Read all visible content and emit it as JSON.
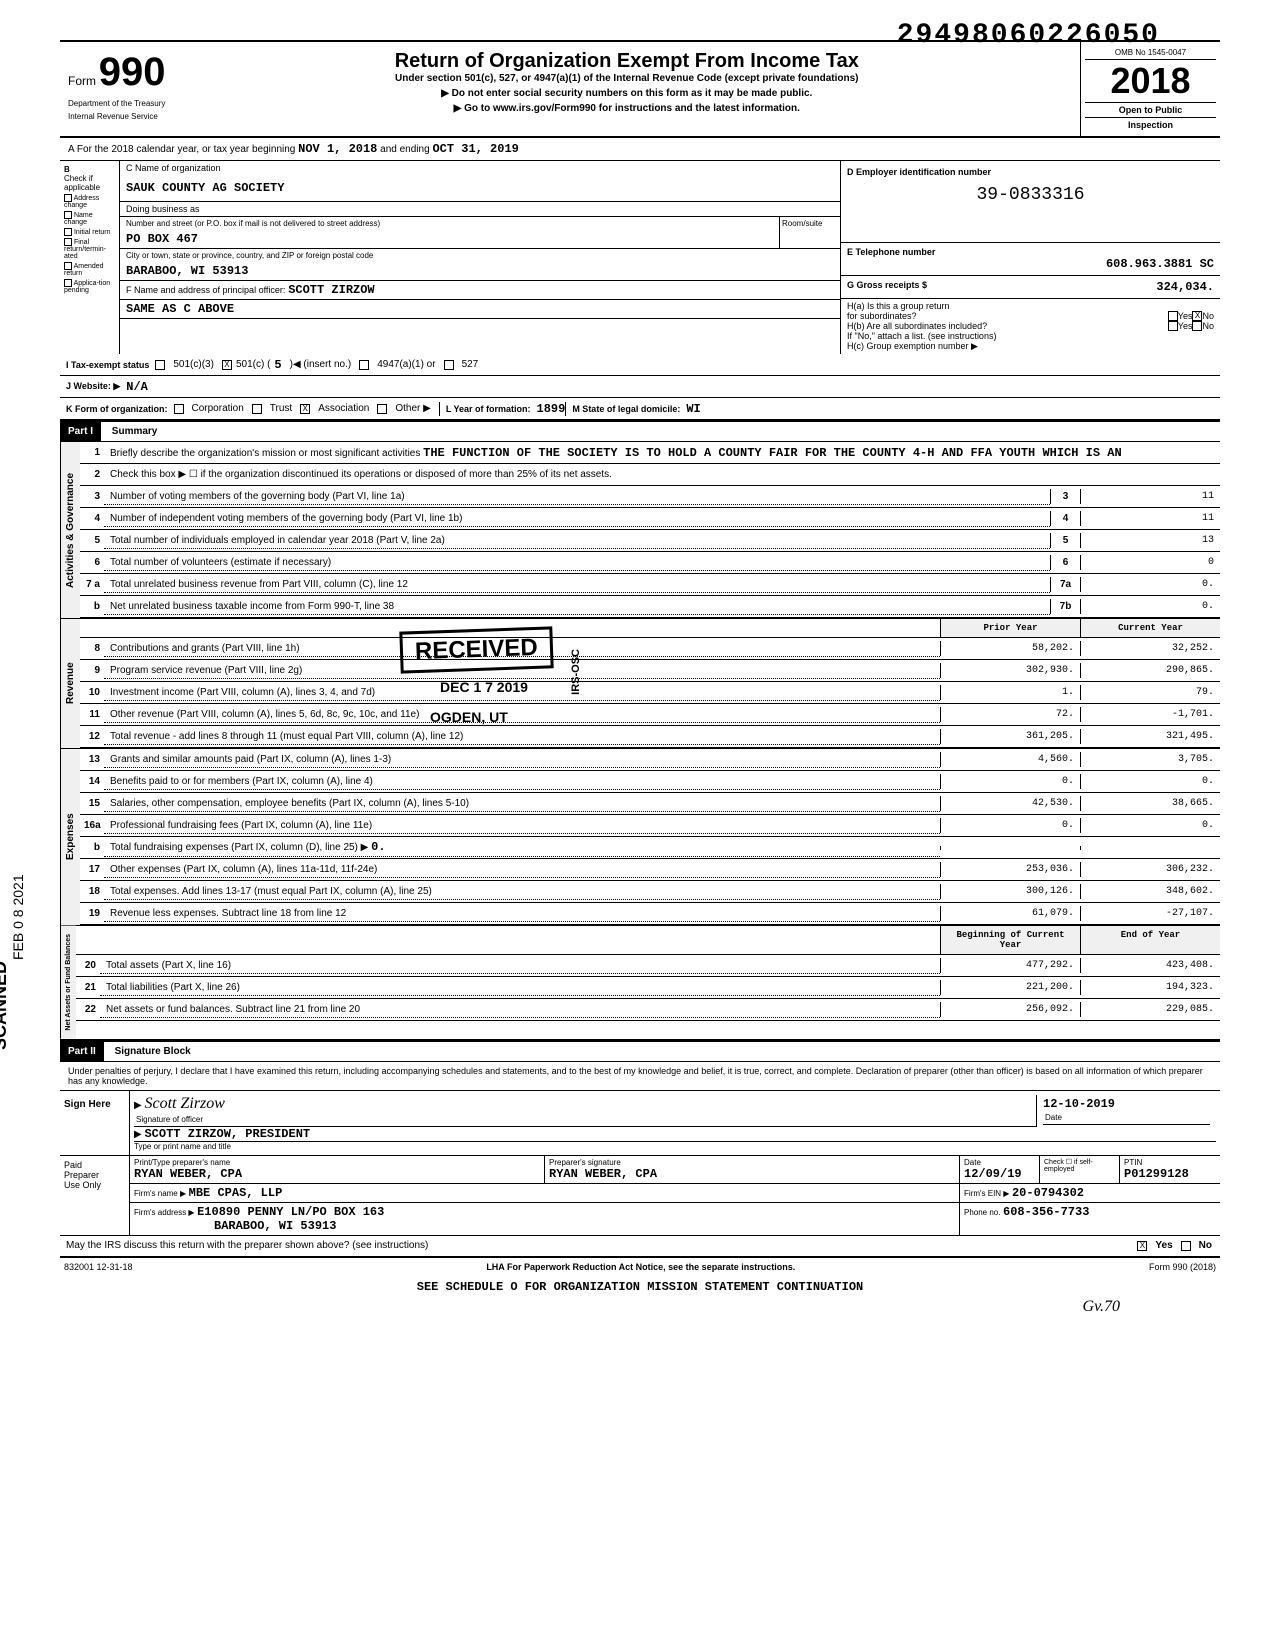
{
  "stamp_number": "29498060226050",
  "scanned_label": "SCANNED",
  "scanned_date": "FEB 0 8 2021",
  "omb": "OMB No 1545-0047",
  "form_prefix": "Form",
  "form_number": "990",
  "dept_line1": "Department of the Treasury",
  "dept_line2": "Internal Revenue Service",
  "main_title": "Return of Organization Exempt From Income Tax",
  "subtitle": "Under section 501(c), 527, or 4947(a)(1) of the Internal Revenue Code (except private foundations)",
  "arrow1": "▶ Do not enter social security numbers on this form as it may be made public.",
  "arrow2": "▶ Go to www.irs.gov/Form990 for instructions and the latest information.",
  "year": "2018",
  "open_public1": "Open to Public",
  "open_public2": "Inspection",
  "period_prefix": "A For the 2018 calendar year, or tax year beginning",
  "period_begin": "NOV 1, 2018",
  "period_mid": "and ending",
  "period_end": "OCT 31, 2019",
  "section_b": {
    "label": "B",
    "check_if": "Check if applicable",
    "items": [
      "Address change",
      "Name change",
      "Initial return",
      "Final return/termin-ated",
      "Amended return",
      "Applica-tion pending"
    ]
  },
  "section_c": {
    "label": "C Name of organization",
    "org_name": "SAUK COUNTY AG SOCIETY",
    "dba_label": "Doing business as",
    "street_label": "Number and street (or P.O. box if mail is not delivered to street address)",
    "room_label": "Room/suite",
    "street": "PO BOX 467",
    "city_label": "City or town, state or province, country, and ZIP or foreign postal code",
    "city": "BARABOO, WI  53913",
    "officer_label": "F Name and address of principal officer:",
    "officer_name": "SCOTT ZIRZOW",
    "officer_addr": "SAME AS C ABOVE"
  },
  "section_d": {
    "label": "D Employer identification number",
    "ein": "39-0833316"
  },
  "section_e": {
    "label": "E Telephone number",
    "phone": "608.963.3881 SC"
  },
  "section_g": {
    "label": "G Gross receipts $",
    "value": "324,034."
  },
  "section_h": {
    "ha_label": "H(a) Is this a group return",
    "ha_sub": "for subordinates?",
    "hb_label": "H(b) Are all subordinates included?",
    "hb_note": "If \"No,\" attach a list. (see instructions)",
    "hc_label": "H(c) Group exemption number ▶",
    "yes": "Yes",
    "no": "No"
  },
  "tax_status": {
    "label": "I Tax-exempt status",
    "opt1": "501(c)(3)",
    "opt2": "501(c) (",
    "opt2_val": "5",
    "opt2_suffix": ")◀ (insert no.)",
    "opt3": "4947(a)(1) or",
    "opt4": "527"
  },
  "website": {
    "label": "J Website: ▶",
    "value": "N/A"
  },
  "section_k": {
    "label": "K Form of organization:",
    "opts": [
      "Corporation",
      "Trust",
      "Association",
      "Other ▶"
    ],
    "checked_idx": 2
  },
  "section_l": {
    "label": "L Year of formation:",
    "year": "1899",
    "state_label": "M State of legal domicile:",
    "state": "WI"
  },
  "part1": {
    "header": "Part I",
    "title": "Summary",
    "vert_gov": "Activities & Governance",
    "vert_rev": "Revenue",
    "vert_exp": "Expenses",
    "vert_net": "Net Assets or Fund Balances",
    "line1_label": "Briefly describe the organization's mission or most significant activities",
    "line1_text": "THE FUNCTION OF THE SOCIETY IS TO HOLD A COUNTY FAIR FOR THE COUNTY 4-H AND FFA YOUTH WHICH IS AN",
    "line2": "Check this box ▶ ☐ if the organization discontinued its operations or disposed of more than 25% of its net assets.",
    "lines": [
      {
        "num": "3",
        "desc": "Number of voting members of the governing body (Part VI, line 1a)",
        "box": "3",
        "val": "11"
      },
      {
        "num": "4",
        "desc": "Number of independent voting members of the governing body (Part VI, line 1b)",
        "box": "4",
        "val": "11"
      },
      {
        "num": "5",
        "desc": "Total number of individuals employed in calendar year 2018 (Part V, line 2a)",
        "box": "5",
        "val": "13"
      },
      {
        "num": "6",
        "desc": "Total number of volunteers (estimate if necessary)",
        "box": "6",
        "val": "0"
      },
      {
        "num": "7 a",
        "desc": "Total unrelated business revenue from Part VIII, column (C), line 12",
        "box": "7a",
        "val": "0."
      },
      {
        "num": "b",
        "desc": "Net unrelated business taxable income from Form 990-T, line 38",
        "box": "7b",
        "val": "0."
      }
    ],
    "prior_year_label": "Prior Year",
    "current_year_label": "Current Year",
    "rev_lines": [
      {
        "num": "8",
        "desc": "Contributions and grants (Part VIII, line 1h)",
        "prior": "58,202.",
        "curr": "32,252."
      },
      {
        "num": "9",
        "desc": "Program service revenue (Part VIII, line 2g)",
        "prior": "302,930.",
        "curr": "290,865."
      },
      {
        "num": "10",
        "desc": "Investment income (Part VIII, column (A), lines 3, 4, and 7d)",
        "prior": "1.",
        "curr": "79."
      },
      {
        "num": "11",
        "desc": "Other revenue (Part VIII, column (A), lines 5, 6d, 8c, 9c, 10c, and 11e)",
        "prior": "72.",
        "curr": "-1,701."
      },
      {
        "num": "12",
        "desc": "Total revenue - add lines 8 through 11 (must equal Part VIII, column (A), line 12)",
        "prior": "361,205.",
        "curr": "321,495."
      }
    ],
    "exp_lines": [
      {
        "num": "13",
        "desc": "Grants and similar amounts paid (Part IX, column (A), lines 1-3)",
        "prior": "4,560.",
        "curr": "3,705."
      },
      {
        "num": "14",
        "desc": "Benefits paid to or for members (Part IX, column (A), line 4)",
        "prior": "0.",
        "curr": "0."
      },
      {
        "num": "15",
        "desc": "Salaries, other compensation, employee benefits (Part IX, column (A), lines 5-10)",
        "prior": "42,530.",
        "curr": "38,665."
      },
      {
        "num": "16a",
        "desc": "Professional fundraising fees (Part IX, column (A), line 11e)",
        "prior": "0.",
        "curr": "0."
      },
      {
        "num": "b",
        "desc": "Total fundraising expenses (Part IX, column (D), line 25) ▶",
        "inline": "0.",
        "prior": "",
        "curr": ""
      },
      {
        "num": "17",
        "desc": "Other expenses (Part IX, column (A), lines 11a-11d, 11f-24e)",
        "prior": "253,036.",
        "curr": "306,232."
      },
      {
        "num": "18",
        "desc": "Total expenses. Add lines 13-17 (must equal Part IX, column (A), line 25)",
        "prior": "300,126.",
        "curr": "348,602."
      },
      {
        "num": "19",
        "desc": "Revenue less expenses. Subtract line 18 from line 12",
        "prior": "61,079.",
        "curr": "-27,107."
      }
    ],
    "boy_label": "Beginning of Current Year",
    "eoy_label": "End of Year",
    "net_lines": [
      {
        "num": "20",
        "desc": "Total assets (Part X, line 16)",
        "prior": "477,292.",
        "curr": "423,408."
      },
      {
        "num": "21",
        "desc": "Total liabilities (Part X, line 26)",
        "prior": "221,200.",
        "curr": "194,323."
      },
      {
        "num": "22",
        "desc": "Net assets or fund balances. Subtract line 21 from line 20",
        "prior": "256,092.",
        "curr": "229,085."
      }
    ]
  },
  "received_stamp": "RECEIVED",
  "received_date": "DEC 1 7 2019",
  "received_loc": "OGDEN, UT",
  "irs_osc": "IRS-OSC",
  "part2": {
    "header": "Part II",
    "title": "Signature Block",
    "penalties": "Under penalties of perjury, I declare that I have examined this return, including accompanying schedules and statements, and to the best of my knowledge and belief, it is true, correct, and complete. Declaration of preparer (other than officer) is based on all information of which preparer has any knowledge."
  },
  "sign": {
    "label": "Sign Here",
    "arrow": "▶",
    "sig_label": "Signature of officer",
    "sig_date": "12-10-2019",
    "date_label": "Date",
    "name": "SCOTT ZIRZOW, PRESIDENT",
    "name_label": "Type or print name and title"
  },
  "preparer": {
    "label1": "Paid",
    "label2": "Preparer",
    "label3": "Use Only",
    "name_label": "Print/Type preparer's name",
    "name": "RYAN WEBER, CPA",
    "sig_label": "Preparer's signature",
    "sig": "RYAN WEBER, CPA",
    "date_label": "Date",
    "date": "12/09/19",
    "check_label": "Check ☐ if self-employed",
    "ptin_label": "PTIN",
    "ptin": "P01299128",
    "firm_label": "Firm's name ▶",
    "firm": "MBE CPAS, LLP",
    "ein_label": "Firm's EIN ▶",
    "ein": "20-0794302",
    "addr_label": "Firm's address ▶",
    "addr1": "E10890 PENNY LN/PO BOX 163",
    "addr2": "BARABOO, WI 53913",
    "phone_label": "Phone no.",
    "phone": "608-356-7733"
  },
  "discuss": {
    "text": "May the IRS discuss this return with the preparer shown above? (see instructions)",
    "yes": "Yes",
    "no": "No"
  },
  "footer": {
    "code": "832001 12-31-18",
    "lha": "LHA For Paperwork Reduction Act Notice, see the separate instructions.",
    "form": "Form 990 (2018)",
    "sched": "SEE SCHEDULE O FOR ORGANIZATION MISSION STATEMENT CONTINUATION"
  },
  "handwritten": "Gv.70"
}
